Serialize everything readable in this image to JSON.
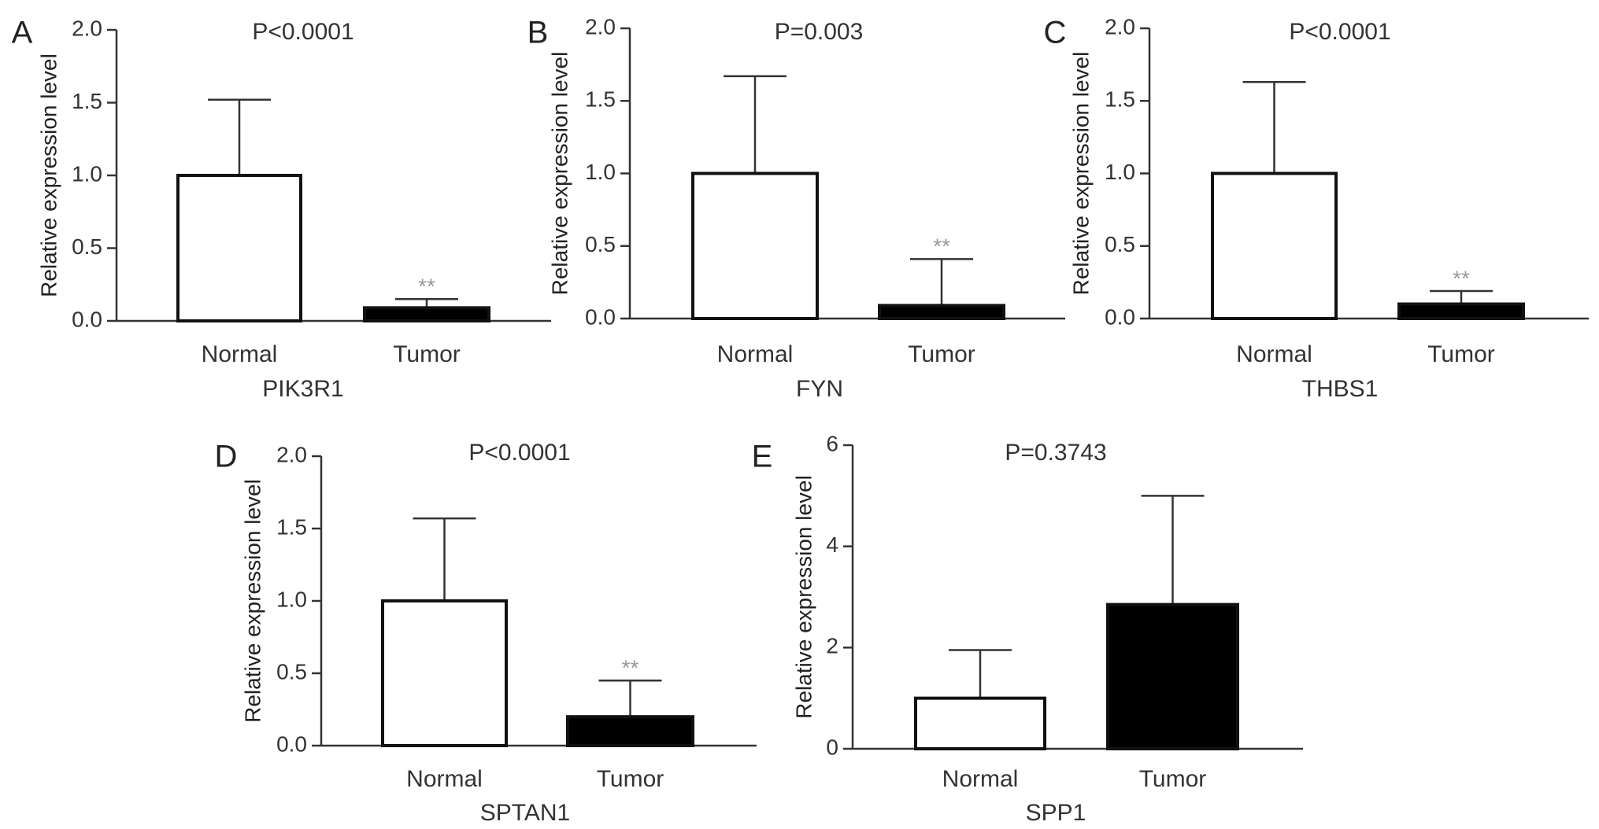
{
  "chart_data": [
    {
      "panel_letter": "A",
      "type": "bar",
      "title": "P<0.0001",
      "xlabel": "PIK3R1",
      "ylabel": "Relative expression level",
      "ylim": [
        0,
        2.0
      ],
      "yticks": [
        "0.0",
        "0.5",
        "1.0",
        "1.5",
        "2.0"
      ],
      "yticks_values": [
        0,
        0.5,
        1.0,
        1.5,
        2.0
      ],
      "categories": [
        "Normal",
        "Tumor"
      ],
      "values": [
        1.0,
        0.09
      ],
      "errors": [
        0.52,
        0.06
      ],
      "fills": [
        "#ffffff",
        "#000000"
      ],
      "annotations": [
        "",
        "**"
      ],
      "grid": false
    },
    {
      "panel_letter": "B",
      "type": "bar",
      "title": "P=0.003",
      "xlabel": "FYN",
      "ylabel": "Relative expression level",
      "ylim": [
        0,
        2.0
      ],
      "yticks": [
        "0.0",
        "0.5",
        "1.0",
        "1.5",
        "2.0"
      ],
      "yticks_values": [
        0,
        0.5,
        1.0,
        1.5,
        2.0
      ],
      "categories": [
        "Normal",
        "Tumor"
      ],
      "values": [
        1.0,
        0.09
      ],
      "errors": [
        0.67,
        0.32
      ],
      "fills": [
        "#ffffff",
        "#000000"
      ],
      "annotations": [
        "",
        "**"
      ],
      "grid": false
    },
    {
      "panel_letter": "C",
      "type": "bar",
      "title": "P<0.0001",
      "xlabel": "THBS1",
      "ylabel": "Relative expression level",
      "ylim": [
        0,
        2.0
      ],
      "yticks": [
        "0.0",
        "0.5",
        "1.0",
        "1.5",
        "2.0"
      ],
      "yticks_values": [
        0,
        0.5,
        1.0,
        1.5,
        2.0
      ],
      "categories": [
        "Normal",
        "Tumor"
      ],
      "values": [
        1.0,
        0.1
      ],
      "errors": [
        0.63,
        0.09
      ],
      "fills": [
        "#ffffff",
        "#000000"
      ],
      "annotations": [
        "",
        "**"
      ],
      "grid": false
    },
    {
      "panel_letter": "D",
      "type": "bar",
      "title": "P<0.0001",
      "xlabel": "SPTAN1",
      "ylabel": "Relative expression level",
      "ylim": [
        0,
        2.0
      ],
      "yticks": [
        "0.0",
        "0.5",
        "1.0",
        "1.5",
        "2.0"
      ],
      "yticks_values": [
        0,
        0.5,
        1.0,
        1.5,
        2.0
      ],
      "categories": [
        "Normal",
        "Tumor"
      ],
      "values": [
        1.0,
        0.2
      ],
      "errors": [
        0.57,
        0.25
      ],
      "fills": [
        "#ffffff",
        "#000000"
      ],
      "annotations": [
        "",
        "**"
      ],
      "grid": false
    },
    {
      "panel_letter": "E",
      "type": "bar",
      "title": "P=0.3743",
      "xlabel": "SPP1",
      "ylabel": "Relative expression level",
      "ylim": [
        0,
        6
      ],
      "yticks": [
        "0",
        "2",
        "4",
        "6"
      ],
      "yticks_values": [
        0,
        2,
        4,
        6
      ],
      "categories": [
        "Normal",
        "Tumor"
      ],
      "values": [
        1.0,
        2.85
      ],
      "errors": [
        0.95,
        2.15
      ],
      "fills": [
        "#ffffff",
        "#000000"
      ],
      "annotations": [
        "",
        ""
      ],
      "grid": false
    }
  ],
  "colors": {
    "axis": "#333333",
    "text": "#333333",
    "annotation": "#999999"
  }
}
